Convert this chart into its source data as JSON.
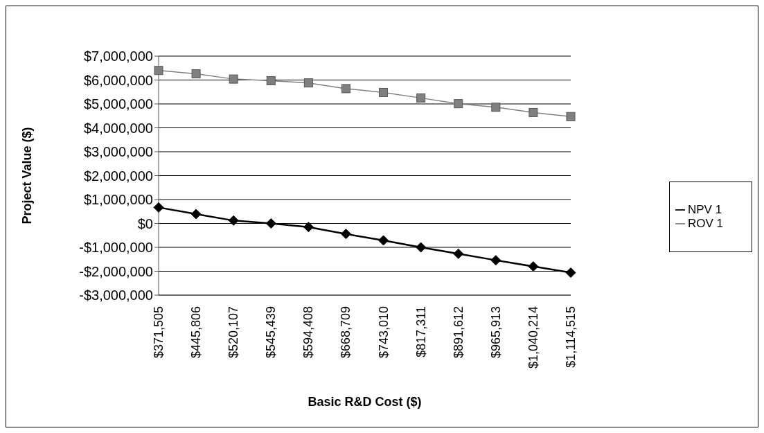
{
  "chart_data": {
    "type": "line",
    "xlabel": "Basic R&D Cost ($)",
    "ylabel": "Project Value ($)",
    "categories": [
      "$371,505",
      "$445,806",
      "$520,107",
      "$545,439",
      "$594,408",
      "$668,709",
      "$743,010",
      "$817,311",
      "$891,612",
      "$965,913",
      "$1,040,214",
      "$1,114,515"
    ],
    "series": [
      {
        "name": "NPV 1",
        "color": "#000000",
        "marker": "diamond",
        "values": [
          670000,
          390000,
          120000,
          0,
          -150000,
          -440000,
          -710000,
          -1000000,
          -1270000,
          -1540000,
          -1800000,
          -2060000
        ]
      },
      {
        "name": "ROV 1",
        "color": "#808080",
        "marker": "square",
        "values": [
          6400000,
          6260000,
          6040000,
          5970000,
          5880000,
          5640000,
          5480000,
          5250000,
          5010000,
          4860000,
          4640000,
          4470000
        ]
      }
    ],
    "ylim": [
      -3000000,
      7000000
    ],
    "yticks": [
      {
        "value": -3000000,
        "label": "-$3,000,000"
      },
      {
        "value": -2000000,
        "label": "-$2,000,000"
      },
      {
        "value": -1000000,
        "label": "-$1,000,000"
      },
      {
        "value": 0,
        "label": "$0"
      },
      {
        "value": 1000000,
        "label": "$1,000,000"
      },
      {
        "value": 2000000,
        "label": "$2,000,000"
      },
      {
        "value": 3000000,
        "label": "$3,000,000"
      },
      {
        "value": 4000000,
        "label": "$4,000,000"
      },
      {
        "value": 5000000,
        "label": "$5,000,000"
      },
      {
        "value": 6000000,
        "label": "$6,000,000"
      },
      {
        "value": 7000000,
        "label": "$7,000,000"
      }
    ],
    "grid": "y",
    "legend": "right"
  }
}
